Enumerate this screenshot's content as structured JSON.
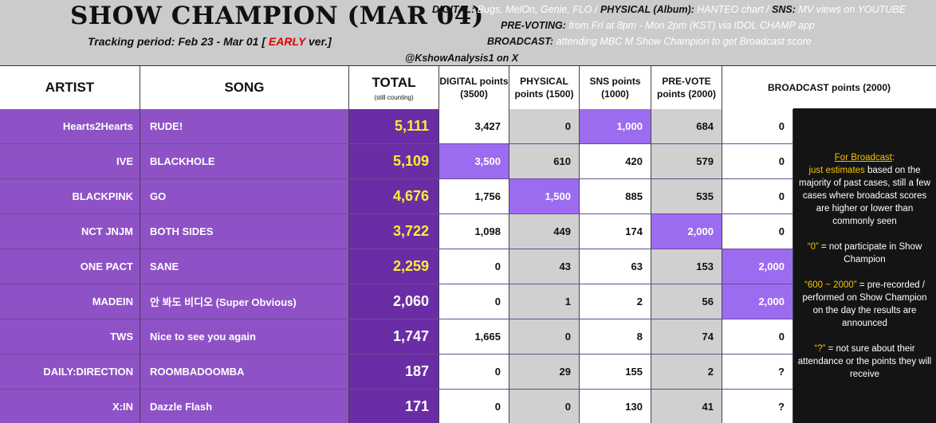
{
  "header": {
    "title": "SHOW CHAMPION (MAR 04)",
    "tracking_prefix": "Tracking period: Feb 23 - Mar 01 [",
    "tracking_early": "EARLY",
    "tracking_suffix": "ver.]",
    "handle": "@KshowAnalysis1 on X",
    "info_line1": {
      "k1": "DIGITAL:",
      "v1": "Bugs, MelOn, Genie, FLO /",
      "k2": "PHYSICAL (Album):",
      "v2": "HANTEO chart /",
      "k3": "SNS:",
      "v3": "MV views on YOUTUBE"
    },
    "info_line2": {
      "k": "PRE-VOTING:",
      "v": "from Fri at 8pm - Mon 2pm (KST) via IDOL CHAMP app"
    },
    "info_line3": {
      "k": "BROADCAST:",
      "v": "attending MBC M Show Champion to get Broadcast score"
    }
  },
  "columns": {
    "artist": "ARTIST",
    "song": "SONG",
    "total": "TOTAL",
    "total_sub": "(still counting)",
    "digital": "DIGITAL points (3500)",
    "physical": "PHYSICAL points (1500)",
    "sns": "SNS points (1000)",
    "prevote": "PRE-VOTE points (2000)",
    "broadcast": "BROADCAST points (2000)"
  },
  "rows": [
    {
      "artist": "Hearts2Hearts",
      "song": "RUDE!",
      "total": "5,111",
      "digital": "3,427",
      "physical": "0",
      "sns": "1,000",
      "prevote": "684",
      "broadcast": "0"
    },
    {
      "artist": "IVE",
      "song": "BLACKHOLE",
      "total": "5,109",
      "digital": "3,500",
      "physical": "610",
      "sns": "420",
      "prevote": "579",
      "broadcast": "0"
    },
    {
      "artist": "BLACKPINK",
      "song": "GO",
      "total": "4,676",
      "digital": "1,756",
      "physical": "1,500",
      "sns": "885",
      "prevote": "535",
      "broadcast": "0"
    },
    {
      "artist": "NCT JNJM",
      "song": "BOTH SIDES",
      "total": "3,722",
      "digital": "1,098",
      "physical": "449",
      "sns": "174",
      "prevote": "2,000",
      "broadcast": "0"
    },
    {
      "artist": "ONE PACT",
      "song": "SANE",
      "total": "2,259",
      "digital": "0",
      "physical": "43",
      "sns": "63",
      "prevote": "153",
      "broadcast": "2,000"
    },
    {
      "artist": "MADEIN",
      "song": "안 봐도 비디오 (Super Obvious)",
      "total": "2,060",
      "digital": "0",
      "physical": "1",
      "sns": "2",
      "prevote": "56",
      "broadcast": "2,000"
    },
    {
      "artist": "TWS",
      "song": "Nice to see you again",
      "total": "1,747",
      "digital": "1,665",
      "physical": "0",
      "sns": "8",
      "prevote": "74",
      "broadcast": "0"
    },
    {
      "artist": "DAILY:DIRECTION",
      "song": "ROOMBADOOMBA",
      "total": "187",
      "digital": "0",
      "physical": "29",
      "sns": "155",
      "prevote": "2",
      "broadcast": "?"
    },
    {
      "artist": "X:IN",
      "song": "Dazzle Flash",
      "total": "171",
      "digital": "0",
      "physical": "0",
      "sns": "130",
      "prevote": "41",
      "broadcast": "?"
    }
  ],
  "sidebar": {
    "heading": "For Broadcast",
    "colon": ":",
    "p1_highlight": "just estimates",
    "p1_rest": "based on the majority of past cases, still a few cases where broadcast scores are higher or lower than commonly seen",
    "p2_highlight": "“0”",
    "p2_rest": "= not participate in Show Champion",
    "p3_highlight": "“600 ~ 2000”",
    "p3_rest": "= pre-recorded / performed on Show Champion on the day the results are announced",
    "p4_highlight": "“?”",
    "p4_rest": "= not sure about their attendance or the points they will receive"
  },
  "colors": {
    "artist_bg": "#8e52c6",
    "total_bg": "#6b2da6",
    "highlight_cell": "#9c6cf0",
    "total_top_text": "#ffee33",
    "header_bg": "#cbcbcb",
    "sidebar_bg": "#141414"
  }
}
